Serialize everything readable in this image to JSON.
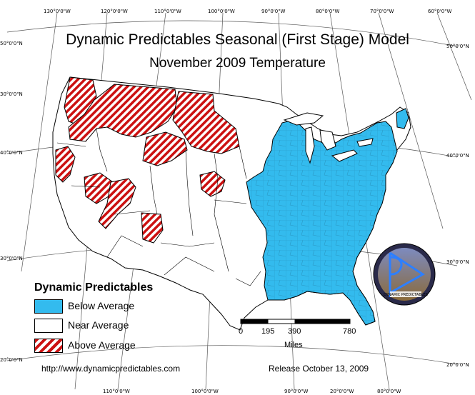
{
  "title": "Dynamic Predictables Seasonal (First Stage) Model",
  "subtitle": "November 2009 Temperature",
  "legend": {
    "title": "Dynamic Predictables",
    "items": [
      {
        "label": "Below Average",
        "color": "#33bbee"
      },
      {
        "label": "Near Average",
        "color": "#ffffff"
      },
      {
        "label": "Above Average",
        "color": "#cc1111"
      }
    ]
  },
  "scale_bar": {
    "ticks": [
      "0",
      "195",
      "390",
      "780"
    ],
    "unit": "Miles"
  },
  "url": "http://www.dynamicpredictables.com",
  "release": "Release October 13, 2009",
  "logo_text": "Dynamic Predictables",
  "graticule": {
    "top_lon": [
      "130°0'0\"W",
      "120°0'0\"W",
      "110°0'0\"W",
      "100°0'0\"W",
      "90°0'0\"W",
      "80°0'0\"W",
      "70°0'0\"W",
      "60°0'0\"W"
    ],
    "bottom_lon": [
      "110°0'0\"W",
      "100°0'0\"W",
      "90°0'0\"W",
      "20°0'0\"W",
      "80°0'0\"W"
    ],
    "left_lat": [
      "50°0'0\"N",
      "40°0'0\"N",
      "30°0'0\"N",
      "20°0'0\"N"
    ],
    "right_lat": [
      "50°0'0\"N",
      "40°0'0\"N",
      "30°0'0\"N",
      "20°0'0\"N"
    ],
    "left_extra": "30°0'0\"N"
  }
}
